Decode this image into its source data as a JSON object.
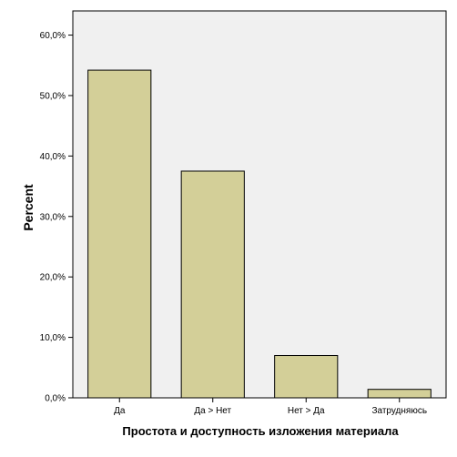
{
  "chart_data": {
    "type": "bar",
    "categories": [
      "Да",
      "Да > Нет",
      "Нет > Да",
      "Затрудняюсь"
    ],
    "values": [
      54.2,
      37.5,
      7.0,
      1.4
    ],
    "xlabel": "Простота и доступность изложения материала",
    "ylabel": "Percent",
    "ylim": [
      0,
      64
    ],
    "yticks": [
      0,
      10,
      20,
      30,
      40,
      50,
      60
    ],
    "ytick_labels": [
      "0,0%",
      "10,0%",
      "20,0%",
      "30,0%",
      "40,0%",
      "50,0%",
      "60,0%"
    ],
    "grid": false,
    "colors": {
      "bar_fill": "#d3cf98",
      "bar_stroke": "#000000",
      "plot_background": "#f0f0f0"
    }
  }
}
